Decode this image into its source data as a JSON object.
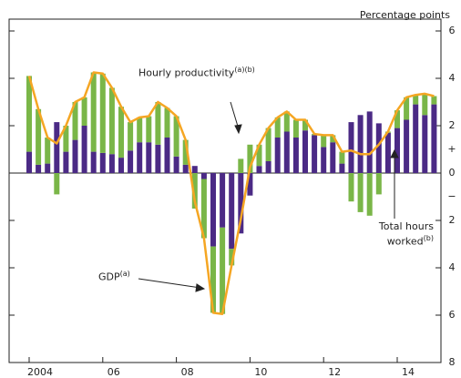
{
  "chart_data": {
    "type": "stacked-bar-line",
    "unit_label": "Percentage points",
    "categories": [
      "2004",
      null,
      null,
      null,
      null,
      null,
      null,
      null,
      "06",
      null,
      null,
      null,
      null,
      null,
      null,
      null,
      "08",
      null,
      null,
      null,
      null,
      null,
      null,
      null,
      "10",
      null,
      null,
      null,
      null,
      null,
      null,
      null,
      "12",
      null,
      null,
      null,
      null,
      null,
      null,
      null,
      "14",
      null,
      null,
      null,
      null
    ],
    "series": [
      {
        "name": "Total hours worked",
        "note": "(b)",
        "kind": "bar",
        "color": "#4b2a85",
        "values": [
          0.9,
          0.35,
          0.4,
          2.15,
          0.9,
          1.4,
          2.0,
          0.9,
          0.85,
          0.8,
          0.65,
          0.95,
          1.3,
          1.3,
          1.2,
          1.5,
          0.7,
          0.35,
          0.3,
          -0.25,
          -3.1,
          -2.3,
          -3.2,
          -2.55,
          -0.95,
          0.3,
          0.5,
          1.5,
          1.75,
          1.5,
          1.8,
          1.6,
          1.1,
          1.3,
          0.4,
          2.15,
          2.45,
          2.6,
          2.1,
          1.7,
          1.9,
          2.25,
          2.9,
          2.45,
          2.9
        ]
      },
      {
        "name": "Hourly productivity",
        "note": "(a)(b)",
        "kind": "bar",
        "color": "#7ab648",
        "values": [
          3.2,
          2.35,
          1.1,
          -0.9,
          1.1,
          1.6,
          1.2,
          3.35,
          3.35,
          2.8,
          2.15,
          1.2,
          1.05,
          1.1,
          1.8,
          1.25,
          1.7,
          1.05,
          -1.5,
          -2.5,
          -2.8,
          -3.65,
          -0.7,
          0.6,
          1.2,
          0.9,
          1.4,
          0.85,
          0.85,
          0.75,
          0.45,
          0.05,
          0.5,
          0.3,
          0.5,
          -1.2,
          -1.65,
          -1.8,
          -0.9,
          0.05,
          0.75,
          0.95,
          0.4,
          0.9,
          0.35
        ]
      },
      {
        "name": "GDP",
        "note": "(a)",
        "kind": "line",
        "color": "#f5a623",
        "values": [
          4.1,
          2.7,
          1.5,
          1.25,
          2.0,
          3.0,
          3.2,
          4.25,
          4.2,
          3.6,
          2.8,
          2.15,
          2.35,
          2.4,
          3.0,
          2.75,
          2.4,
          1.4,
          -1.2,
          -2.75,
          -5.9,
          -5.95,
          -3.9,
          -1.95,
          0.25,
          1.2,
          1.9,
          2.35,
          2.6,
          2.25,
          2.25,
          1.65,
          1.6,
          1.6,
          0.9,
          0.95,
          0.8,
          0.8,
          1.2,
          1.75,
          2.65,
          3.2,
          3.3,
          3.35,
          3.25
        ]
      }
    ],
    "ylim": [
      -8,
      6.5
    ],
    "yticks": [
      6,
      4,
      2,
      0,
      {
        "value": -2,
        "label": "2"
      },
      {
        "value": -4,
        "label": "4"
      },
      {
        "value": -6,
        "label": "6"
      },
      {
        "value": -8,
        "label": "8"
      }
    ],
    "sign_labels": {
      "positive": "+",
      "negative": "−"
    }
  }
}
